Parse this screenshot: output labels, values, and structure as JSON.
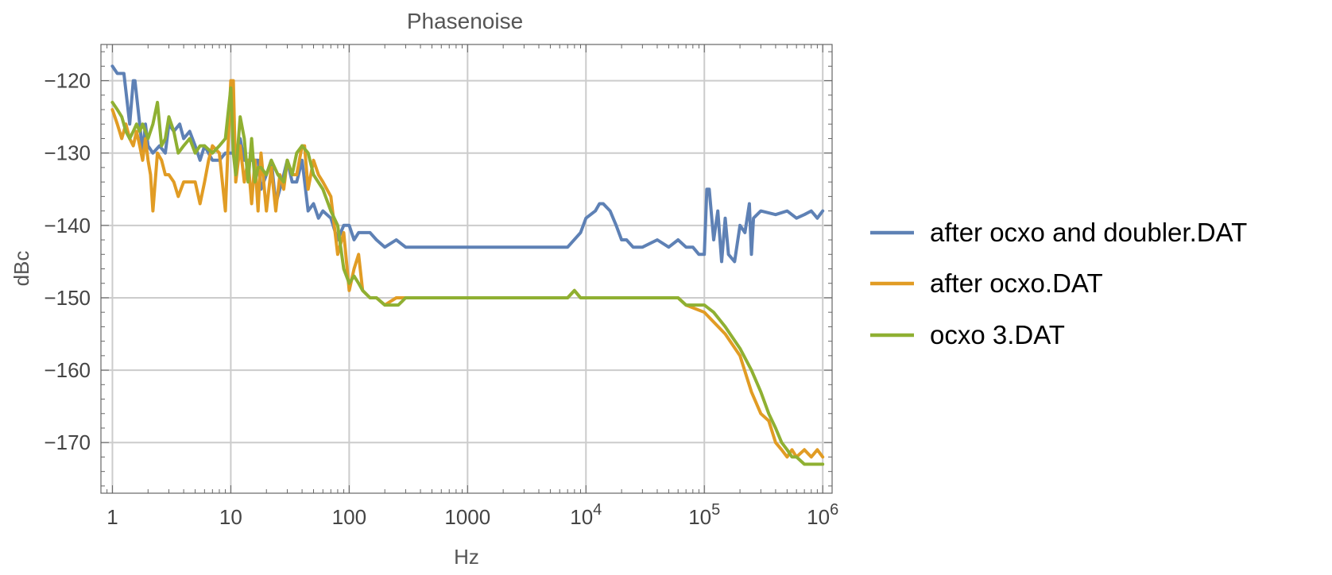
{
  "chart_data": {
    "type": "line",
    "title": "Phasenoise",
    "xlabel": "Hz",
    "ylabel": "dBc",
    "xscale": "log",
    "xlim": [
      0.8,
      1200000
    ],
    "ylim": [
      -177,
      -115
    ],
    "grid": true,
    "legend_position": "right",
    "x_ticks": [
      {
        "value": 1,
        "label": "1"
      },
      {
        "value": 10,
        "label": "10"
      },
      {
        "value": 100,
        "label": "100"
      },
      {
        "value": 1000,
        "label": "1000"
      },
      {
        "value": 10000,
        "label": "10",
        "exp": "4"
      },
      {
        "value": 100000,
        "label": "10",
        "exp": "5"
      },
      {
        "value": 1000000,
        "label": "10",
        "exp": "6"
      }
    ],
    "y_ticks": [
      {
        "value": -120,
        "label": "−120"
      },
      {
        "value": -130,
        "label": "−130"
      },
      {
        "value": -140,
        "label": "−140"
      },
      {
        "value": -150,
        "label": "−150"
      },
      {
        "value": -160,
        "label": "−160"
      },
      {
        "value": -170,
        "label": "−170"
      }
    ],
    "series": [
      {
        "name": "after ocxo and doubler.DAT",
        "color": "#5e81b5",
        "x": [
          1,
          1.1,
          1.25,
          1.4,
          1.5,
          1.55,
          1.7,
          1.8,
          1.9,
          2.0,
          2.2,
          2.5,
          2.8,
          3.0,
          3.3,
          3.7,
          4.0,
          4.5,
          5.0,
          5.5,
          6,
          7,
          8,
          9,
          10,
          11,
          12,
          13,
          14,
          15,
          17,
          18,
          20,
          22,
          24,
          27,
          30,
          33,
          36,
          40,
          45,
          50,
          55,
          60,
          70,
          80,
          90,
          100,
          110,
          120,
          130,
          150,
          170,
          200,
          250,
          300,
          400,
          500,
          700,
          1000,
          1500,
          2000,
          3000,
          5000,
          7000,
          9000,
          10000,
          12000,
          13000,
          14000,
          16000,
          18000,
          20000,
          22000,
          25000,
          30000,
          40000,
          50000,
          60000,
          70000,
          80000,
          90000,
          100000,
          105000,
          110000,
          120000,
          130000,
          140000,
          150000,
          160000,
          180000,
          200000,
          220000,
          240000,
          250000,
          260000,
          300000,
          400000,
          500000,
          600000,
          700000,
          800000,
          900000,
          1000000
        ],
        "y": [
          -118,
          -119,
          -119,
          -126,
          -120,
          -120,
          -126,
          -130,
          -126,
          -129,
          -130,
          -129,
          -130,
          -126,
          -127,
          -126,
          -128,
          -127,
          -129,
          -131,
          -129,
          -131,
          -131,
          -130,
          -130,
          -130,
          -128,
          -131,
          -131,
          -131,
          -131,
          -135,
          -133,
          -131,
          -137,
          -134,
          -131,
          -134,
          -134,
          -131,
          -138,
          -137,
          -139,
          -138,
          -139,
          -142,
          -140,
          -140,
          -142,
          -141,
          -141,
          -141,
          -142,
          -143,
          -142,
          -143,
          -143,
          -143,
          -143,
          -143,
          -143,
          -143,
          -143,
          -143,
          -143,
          -141,
          -139,
          -138,
          -137,
          -137,
          -138,
          -140,
          -142,
          -142,
          -143,
          -143,
          -142,
          -143,
          -142,
          -143,
          -143,
          -144,
          -144,
          -135,
          -135,
          -142,
          -138,
          -145,
          -139,
          -144,
          -145,
          -140,
          -141,
          -137,
          -144,
          -139,
          -138,
          -138.5,
          -138,
          -139,
          -138.5,
          -138,
          -139,
          -138
        ]
      },
      {
        "name": "after ocxo.DAT",
        "color": "#e19c24",
        "x": [
          1,
          1.1,
          1.2,
          1.3,
          1.4,
          1.5,
          1.6,
          1.7,
          1.8,
          1.9,
          2.0,
          2.1,
          2.2,
          2.4,
          2.6,
          2.8,
          3.0,
          3.3,
          3.6,
          4.0,
          4.5,
          5.0,
          5.5,
          6.0,
          6.5,
          7.0,
          8.0,
          9.0,
          10.0,
          10.5,
          11,
          12,
          13,
          14,
          15,
          16,
          17,
          18,
          20,
          22,
          24,
          26,
          28,
          30,
          33,
          36,
          40,
          42,
          45,
          50,
          55,
          60,
          70,
          80,
          90,
          100,
          110,
          120,
          130,
          150,
          170,
          200,
          250,
          300,
          400,
          500,
          700,
          1000,
          1500,
          2000,
          3000,
          5000,
          7000,
          8000,
          9000,
          10000,
          15000,
          20000,
          30000,
          40000,
          50000,
          60000,
          70000,
          100000,
          150000,
          200000,
          250000,
          300000,
          350000,
          400000,
          450000,
          500000,
          550000,
          600000,
          700000,
          800000,
          900000,
          1000000
        ],
        "y": [
          -124,
          -126,
          -128,
          -126,
          -128,
          -129,
          -127,
          -129,
          -131,
          -128,
          -131,
          -133,
          -138,
          -130,
          -131,
          -133,
          -133,
          -134,
          -136,
          -134,
          -134,
          -134,
          -137,
          -134,
          -131,
          -129,
          -130,
          -138,
          -120,
          -120,
          -134,
          -129,
          -134,
          -131,
          -137,
          -131,
          -138,
          -130,
          -138,
          -132,
          -138,
          -133,
          -135,
          -131,
          -133,
          -133,
          -129,
          -129,
          -135,
          -131,
          -133,
          -134,
          -136,
          -144,
          -141,
          -149,
          -146,
          -144,
          -149,
          -150,
          -150,
          -151,
          -150,
          -150,
          -150,
          -150,
          -150,
          -150,
          -150,
          -150,
          -150,
          -150,
          -150,
          -149,
          -150,
          -150,
          -150,
          -150,
          -150,
          -150,
          -150,
          -150,
          -151,
          -152,
          -155,
          -158,
          -163,
          -166,
          -167,
          -170,
          -171,
          -172,
          -171,
          -172,
          -171,
          -172,
          -171,
          -172
        ]
      },
      {
        "name": "ocxo 3.DAT",
        "color": "#8fb032",
        "x": [
          1,
          1.1,
          1.2,
          1.3,
          1.4,
          1.5,
          1.6,
          1.7,
          1.8,
          1.9,
          2.0,
          2.2,
          2.4,
          2.6,
          2.8,
          3.0,
          3.3,
          3.6,
          4.0,
          4.5,
          5.0,
          5.5,
          6.0,
          7.0,
          8.0,
          9.0,
          10.0,
          10.5,
          11,
          12,
          13,
          14,
          15,
          16,
          17,
          18,
          20,
          22,
          25,
          28,
          30,
          33,
          36,
          40,
          45,
          50,
          60,
          70,
          80,
          90,
          100,
          110,
          120,
          130,
          150,
          170,
          200,
          230,
          260,
          300,
          400,
          500,
          700,
          1000,
          1500,
          2000,
          3000,
          5000,
          7000,
          8000,
          9000,
          10000,
          15000,
          20000,
          30000,
          40000,
          50000,
          60000,
          70000,
          80000,
          100000,
          120000,
          150000,
          200000,
          250000,
          300000,
          350000,
          400000,
          450000,
          500000,
          550000,
          600000,
          700000,
          800000,
          900000,
          1000000
        ],
        "y": [
          -123,
          -124,
          -125,
          -127,
          -128,
          -127,
          -126,
          -127,
          -126,
          -127,
          -128,
          -126,
          -123,
          -129,
          -128,
          -125,
          -127,
          -130,
          -129,
          -128,
          -130,
          -129,
          -129,
          -130,
          -129,
          -128,
          -121,
          -130,
          -133,
          -125,
          -128,
          -134,
          -128,
          -134,
          -132,
          -132,
          -133,
          -131,
          -133,
          -134,
          -131,
          -133,
          -130,
          -129,
          -130,
          -133,
          -135,
          -138,
          -140,
          -146,
          -148,
          -147,
          -148,
          -149,
          -150,
          -150,
          -151,
          -151,
          -151,
          -150,
          -150,
          -150,
          -150,
          -150,
          -150,
          -150,
          -150,
          -150,
          -150,
          -149,
          -150,
          -150,
          -150,
          -150,
          -150,
          -150,
          -150,
          -150,
          -151,
          -151,
          -151,
          -152,
          -154,
          -157,
          -160,
          -163,
          -166,
          -168,
          -170,
          -171,
          -172,
          -172,
          -173,
          -173,
          -173,
          -173
        ]
      }
    ]
  }
}
